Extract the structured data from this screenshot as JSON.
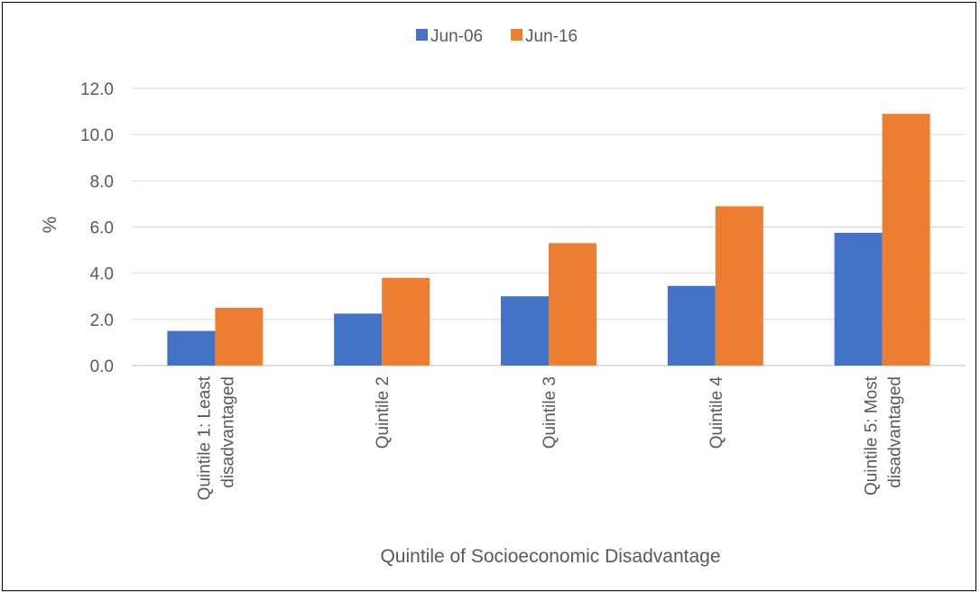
{
  "chart_data": {
    "type": "bar",
    "title": "",
    "xlabel": "Quintile of Socioeconomic Disadvantage",
    "ylabel": "%",
    "ylim": [
      0,
      12
    ],
    "y_ticks": [
      "0.0",
      "2.0",
      "4.0",
      "6.0",
      "8.0",
      "10.0",
      "12.0"
    ],
    "grid": true,
    "legend_position": "top",
    "categories": [
      [
        "Quintile 1: Least",
        "disadvantaged"
      ],
      [
        "Quintile 2"
      ],
      [
        "Quintile 3"
      ],
      [
        "Quintile 4"
      ],
      [
        "Quintile 5: Most",
        "disadvantaged"
      ]
    ],
    "series": [
      {
        "name": "Jun-06",
        "color": "#4472C4",
        "values": [
          1.5,
          2.25,
          3.0,
          3.45,
          5.75
        ]
      },
      {
        "name": "Jun-16",
        "color": "#ED7D31",
        "values": [
          2.5,
          3.8,
          5.3,
          6.9,
          10.9
        ]
      }
    ]
  }
}
